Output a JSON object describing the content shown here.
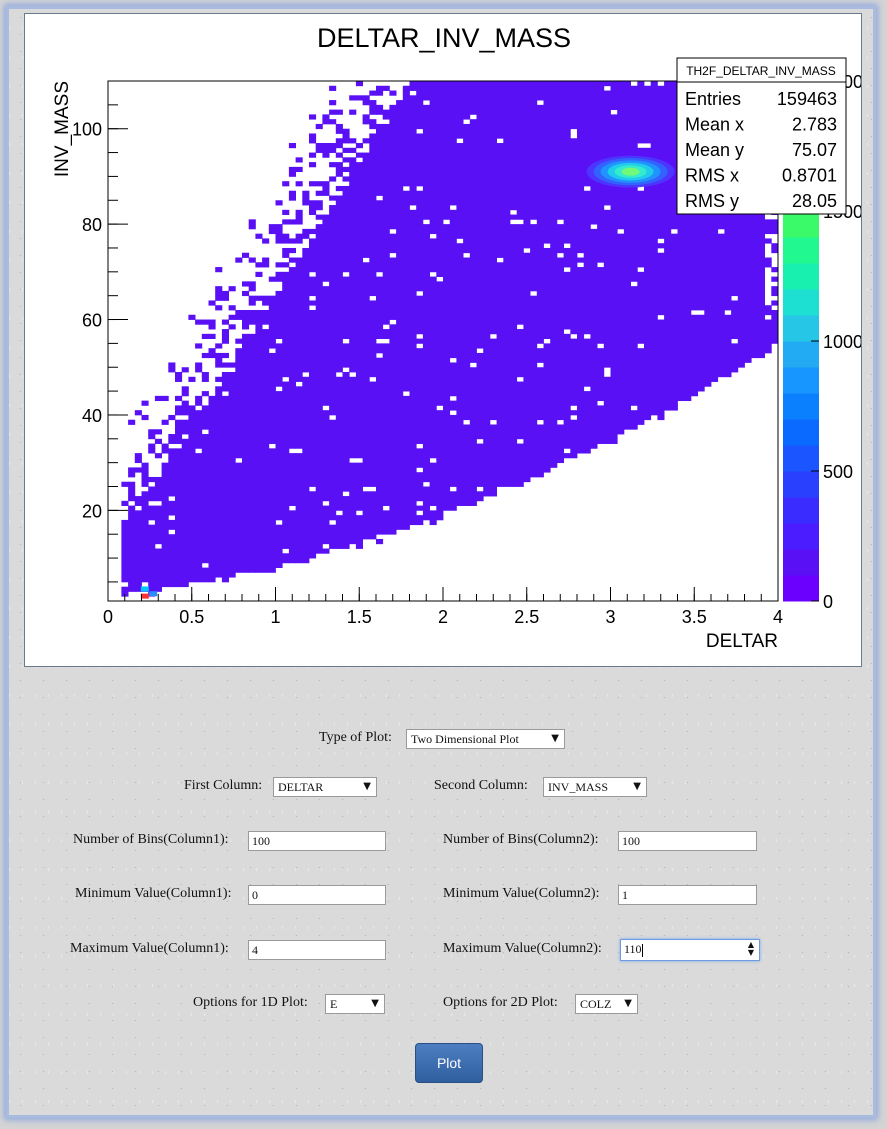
{
  "chart_data": {
    "type": "heatmap",
    "title": "DELTAR_INV_MASS",
    "xlabel": "DELTAR",
    "ylabel": "INV_MASS",
    "xlim": [
      0,
      4
    ],
    "ylim": [
      1,
      110
    ],
    "x_ticks": [
      "0",
      "0.5",
      "1",
      "1.5",
      "2",
      "2.5",
      "3",
      "3.5",
      "4"
    ],
    "y_ticks": [
      "20",
      "40",
      "60",
      "80",
      "100"
    ],
    "colorbar_ticks": [
      "0",
      "500",
      "1000",
      "1500",
      "2000"
    ],
    "peak": {
      "x": 3.12,
      "y": 91,
      "label": "dense cluster near Z mass"
    },
    "stats": {
      "name": "TH2F_DELTAR_INV_MASS",
      "rows": [
        {
          "label": "Entries",
          "value": "159463"
        },
        {
          "label": "Mean x",
          "value": "2.783"
        },
        {
          "label": "Mean y",
          "value": "75.07"
        },
        {
          "label": "RMS x",
          "value": "0.8701"
        },
        {
          "label": "RMS y",
          "value": "28.05"
        }
      ]
    }
  },
  "form": {
    "type_of_plot_label": "Type of Plot:",
    "type_of_plot_value": "Two Dimensional Plot",
    "first_column_label": "First Column:",
    "first_column_value": "DELTAR",
    "second_column_label": "Second Column:",
    "second_column_value": "INV_MASS",
    "bins1_label": "Number of Bins(Column1):",
    "bins1_value": "100",
    "bins2_label": "Number of Bins(Column2):",
    "bins2_value": "100",
    "min1_label": "Minimum Value(Column1):",
    "min1_value": "0",
    "min2_label": "Minimum Value(Column2):",
    "min2_value": "1",
    "max1_label": "Maximum Value(Column1):",
    "max1_value": "4",
    "max2_label": "Maximum Value(Column2):",
    "max2_value": "110",
    "opt1d_label": "Options for 1D Plot:",
    "opt1d_value": "E",
    "opt2d_label": "Options for 2D Plot:",
    "opt2d_value": "COLZ",
    "plot_button": "Plot"
  },
  "colors": {
    "fill": "#5a10f5",
    "peak": "#38f0c8",
    "button": "#3a6db0"
  }
}
